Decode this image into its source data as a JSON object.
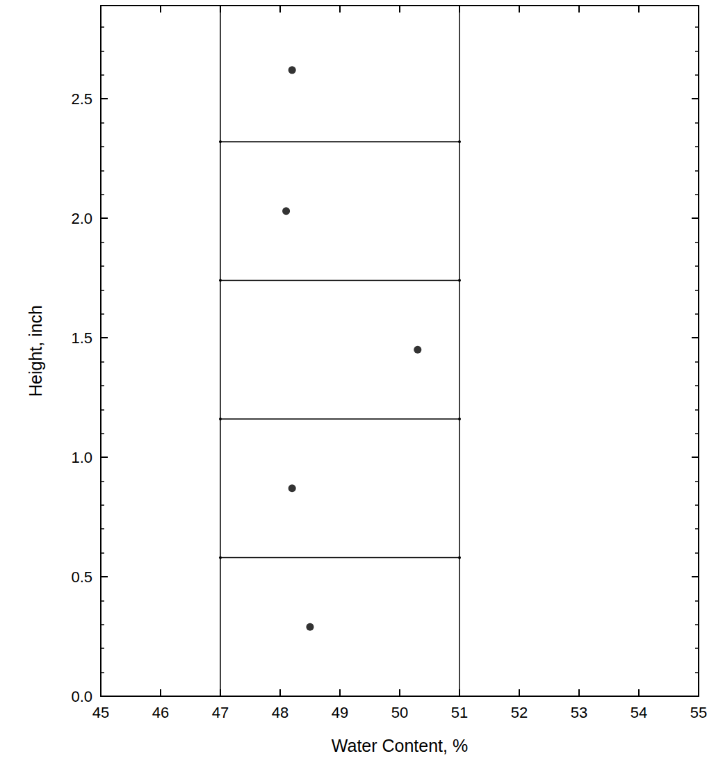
{
  "chart_data": {
    "type": "scatter",
    "x_label": "Water Content, %",
    "y_label": "Height, inch",
    "x": [
      48.2,
      48.1,
      50.3,
      48.2,
      48.5
    ],
    "values": [
      2.62,
      2.03,
      1.45,
      0.87,
      0.29
    ],
    "color": "#000000",
    "marker": "circle",
    "xlim": [
      45,
      55
    ],
    "xticks": [
      45,
      46,
      47,
      48,
      49,
      50,
      51,
      52,
      53,
      54,
      55
    ],
    "ylim": [
      0,
      2.89
    ],
    "yticks": [
      {
        "value": 0,
        "label": "0.0"
      },
      {
        "value": 0.5,
        "label": "0.5"
      },
      {
        "value": 1,
        "label": "1.0"
      },
      {
        "value": 1.5,
        "label": "1.5"
      },
      {
        "value": 2,
        "label": "2.0"
      },
      {
        "value": 2.5,
        "label": "2.5"
      }
    ],
    "boundaries": {
      "x": [
        47,
        51
      ],
      "y": [
        0.58,
        1.16,
        1.74,
        2.32
      ]
    },
    "grid": false
  }
}
